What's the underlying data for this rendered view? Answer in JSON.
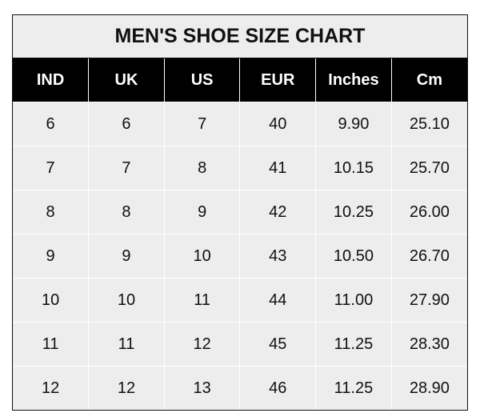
{
  "chart_data": {
    "type": "table",
    "title": "MEN'S SHOE SIZE CHART",
    "columns": [
      "IND",
      "UK",
      "US",
      "EUR",
      "Inches",
      "Cm"
    ],
    "rows": [
      [
        "6",
        "6",
        "7",
        "40",
        "9.90",
        "25.10"
      ],
      [
        "7",
        "7",
        "8",
        "41",
        "10.15",
        "25.70"
      ],
      [
        "8",
        "8",
        "9",
        "42",
        "10.25",
        "26.00"
      ],
      [
        "9",
        "9",
        "10",
        "43",
        "10.50",
        "26.70"
      ],
      [
        "10",
        "10",
        "11",
        "44",
        "11.00",
        "27.90"
      ],
      [
        "11",
        "11",
        "12",
        "45",
        "11.25",
        "28.30"
      ],
      [
        "12",
        "12",
        "13",
        "46",
        "11.25",
        "28.90"
      ]
    ],
    "colors": {
      "header_bg": "#000000",
      "header_text": "#ffffff",
      "body_bg": "#ededed",
      "grid": "#ffffff"
    }
  }
}
